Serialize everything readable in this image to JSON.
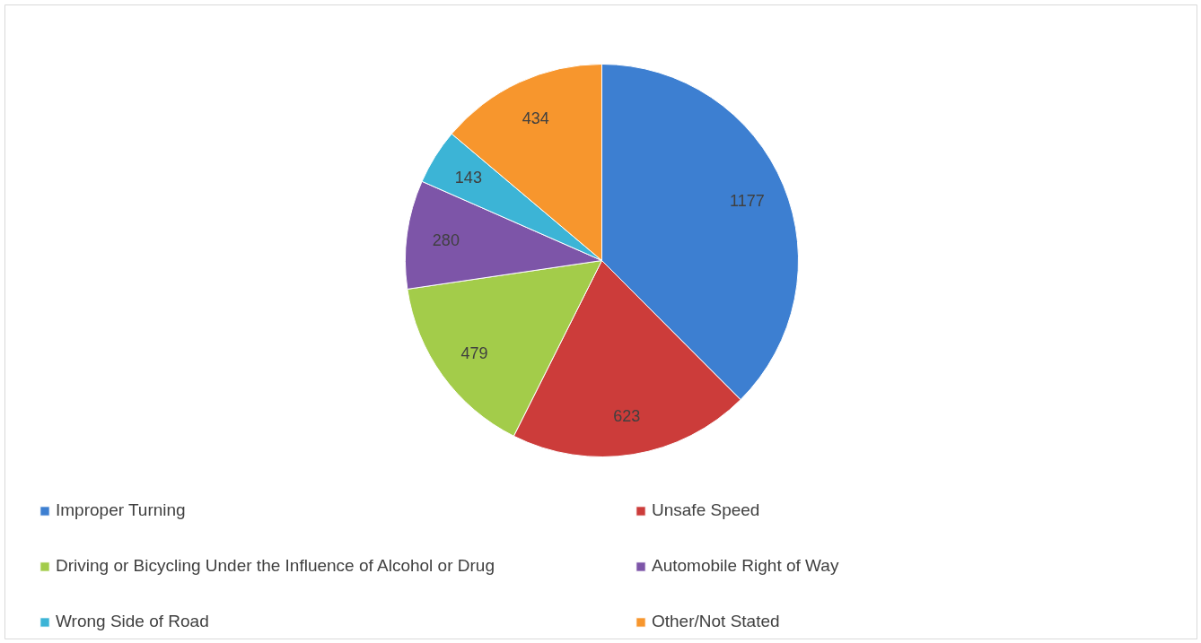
{
  "chart_data": {
    "type": "pie",
    "categories": [
      "Improper Turning",
      "Unsafe Speed",
      "Driving or Bicycling Under the Influence of Alcohol or Drug",
      "Automobile Right of Way",
      "Wrong Side of Road",
      "Other/Not Stated"
    ],
    "values": [
      1177,
      623,
      479,
      280,
      143,
      434
    ],
    "colors": [
      "#3d7fd1",
      "#cc3c3a",
      "#a3cc4a",
      "#7d55a8",
      "#3cb4d6",
      "#f7962d"
    ],
    "data_labels": true,
    "legend": "bottom"
  }
}
